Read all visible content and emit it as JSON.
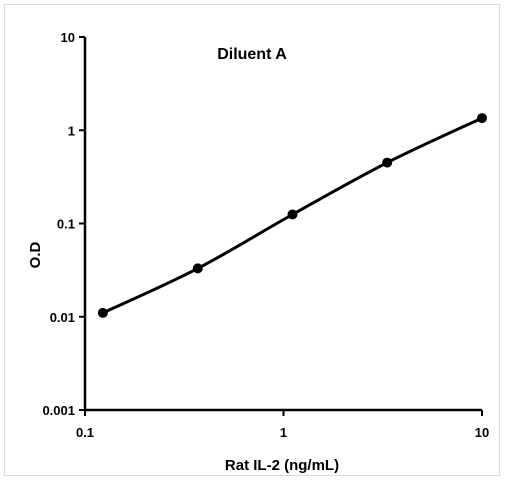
{
  "chart_data": {
    "type": "line",
    "title": "Diluent A",
    "xlabel": "Rat IL-2 (ng/mL)",
    "ylabel": "O.D",
    "x_scale": "log",
    "y_scale": "log",
    "xlim": [
      0.1,
      10
    ],
    "ylim": [
      0.001,
      10
    ],
    "x_ticks": [
      "0.1",
      "1",
      "10"
    ],
    "y_ticks": [
      "10",
      "1",
      "0.1",
      "0.01",
      "0.001"
    ],
    "grid": false,
    "legend": "none",
    "series": [
      {
        "x": [
          0.123,
          0.37,
          1.11,
          3.33,
          10
        ],
        "y": [
          0.011,
          0.033,
          0.125,
          0.45,
          1.35
        ]
      }
    ],
    "colors": {
      "line": "#000000",
      "marker": "#000000"
    }
  }
}
